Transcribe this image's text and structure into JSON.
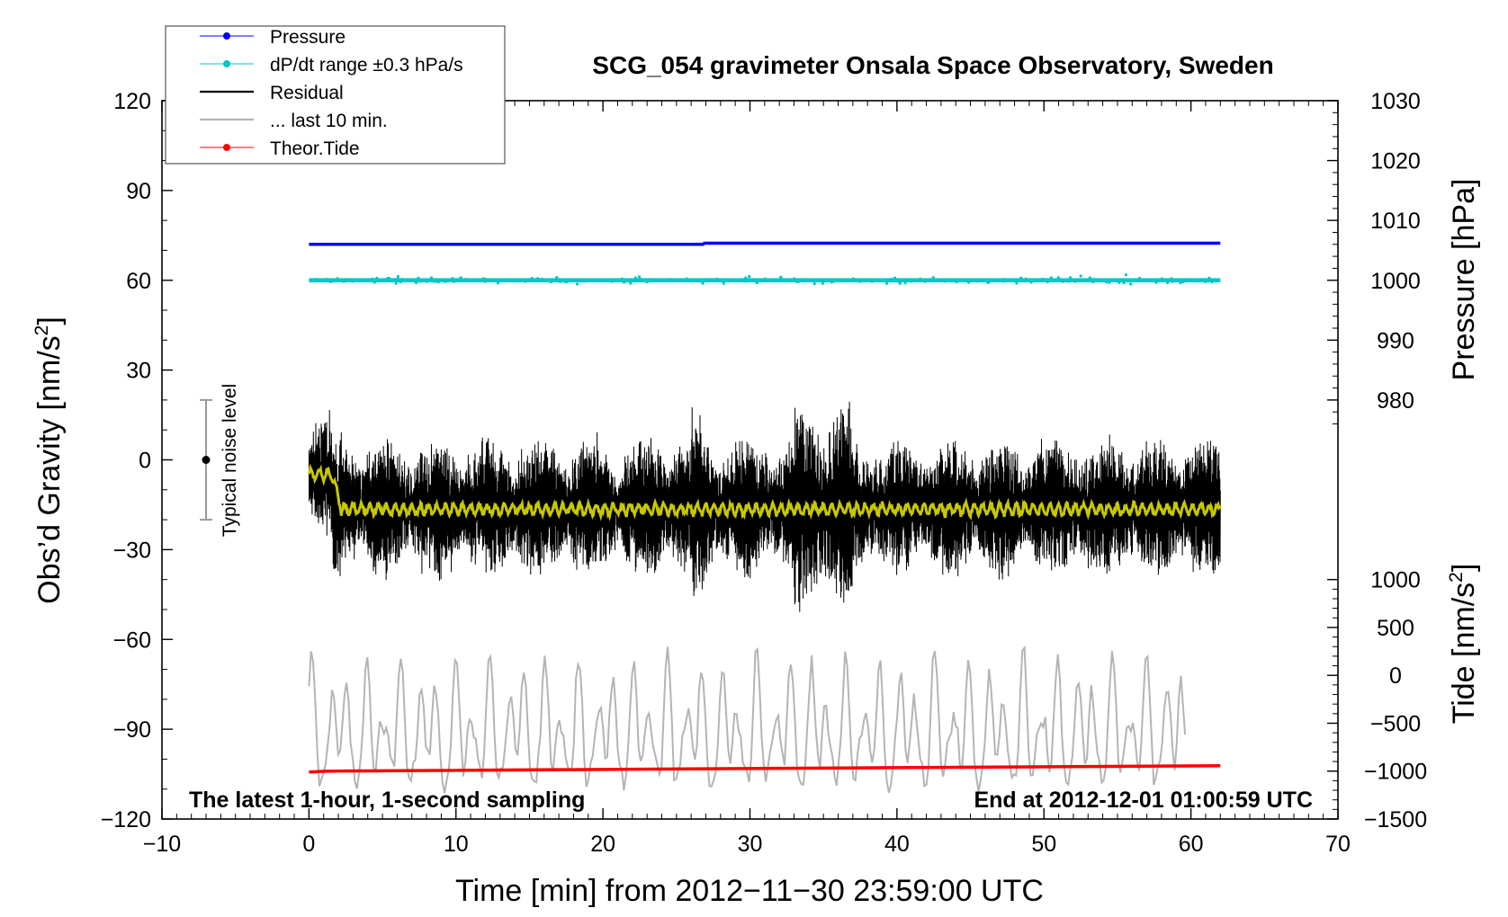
{
  "chart_data": {
    "type": "line",
    "title": "SCG_054 gravimeter Onsala Space Observatory, Sweden",
    "xlabel": "Time [min] from 2012−11−30 23:59:00 UTC",
    "ylabel_left": "Obs’d Gravity [nm/s²]",
    "ylabel_left_parts": {
      "base": "Obs’d Gravity [nm/s",
      "sup": "2",
      "end": "]"
    },
    "ylabel_right_top": "Pressure [hPa]",
    "ylabel_right_bottom": "Tide [nm/s²]",
    "ylabel_right_bottom_parts": {
      "base": "Tide [nm/s",
      "sup": "2",
      "end": "]"
    },
    "xlim": [
      -10,
      70
    ],
    "ylim_left": [
      -120,
      120
    ],
    "x_ticks": [
      -10,
      0,
      10,
      20,
      30,
      40,
      50,
      60,
      70
    ],
    "x_tick_labels": [
      "−10",
      "0",
      "10",
      "20",
      "30",
      "40",
      "50",
      "60",
      "70"
    ],
    "y_left_ticks": [
      -120,
      -90,
      -60,
      -30,
      0,
      30,
      60,
      90,
      120
    ],
    "y_left_tick_labels": [
      "−120",
      "−90",
      "−60",
      "−30",
      "0",
      "30",
      "60",
      "90",
      "120"
    ],
    "pressure_axis": {
      "ticks": [
        980,
        990,
        1000,
        1010,
        1020,
        1030
      ],
      "tick_labels": [
        "980",
        "990",
        "1000",
        "1010",
        "1020",
        "1030"
      ],
      "map_ref": {
        "hpa": [
          1000,
          1030
        ],
        "left_units": [
          60,
          120
        ]
      }
    },
    "tide_axis": {
      "ticks": [
        -1500,
        -1000,
        -500,
        0,
        500,
        1000
      ],
      "tick_labels": [
        "−1500",
        "−1000",
        "−500",
        "0",
        "500",
        "1000"
      ],
      "map_ref": {
        "tide": [
          -1500,
          1000
        ],
        "left_units": [
          -120,
          -40
        ]
      }
    },
    "legend": {
      "placement": "top-left",
      "entries": [
        {
          "label": "Pressure",
          "color": "#0000ff",
          "marker": "dot"
        },
        {
          "label": "dP/dt range ±0.3 hPa/s",
          "color": "#00c8c8",
          "marker": "dot"
        },
        {
          "label": "Residual",
          "color": "#000000",
          "marker": "line"
        },
        {
          "label": "... last 10 min.",
          "color": "#b4b4b4",
          "marker": "line"
        },
        {
          "label": "Theor.Tide",
          "color": "#ff0000",
          "marker": "dot"
        }
      ]
    },
    "series": [
      {
        "name": "Pressure",
        "axis": "pressure",
        "color": "#0000ff",
        "x": [
          0,
          26.8,
          26.9,
          62
        ],
        "values": [
          1006.0,
          1006.0,
          1006.2,
          1006.2
        ]
      },
      {
        "name": "dP/dt range ±0.3 hPa/s",
        "axis": "left",
        "color": "#00c8c8",
        "x_range": [
          0,
          62
        ],
        "center": 60,
        "amplitude": 1.5
      },
      {
        "name": "Residual",
        "axis": "left",
        "color": "#000000",
        "x_range": [
          0,
          62
        ],
        "baseline": -16,
        "start_level": -5,
        "step_at": 1.6,
        "amplitude_typical": 22,
        "min": -60,
        "max": 29
      },
      {
        "name": "Residual smoothed",
        "axis": "left",
        "color": "#c8c800",
        "x_range": [
          0,
          62
        ],
        "start_level": -5,
        "baseline": -16.5,
        "step_at": 1.6
      },
      {
        "name": "... last 10 min.",
        "axis": "left",
        "color": "#b4b4b4",
        "x_range": [
          0,
          59.6
        ],
        "baseline": -91,
        "amplitude": 20
      },
      {
        "name": "Theor.Tide",
        "axis": "left",
        "color": "#ff0000",
        "x": [
          0,
          1.3,
          62
        ],
        "values": [
          -104.3,
          -104.0,
          -102.2
        ]
      }
    ],
    "noise_indicator": {
      "label": "Typical noise level",
      "x": -7,
      "center": 0,
      "low": -20,
      "high": 20
    },
    "annotations": [
      {
        "text": "The latest 1-hour, 1-second sampling",
        "position": "bottom-left"
      },
      {
        "text": "End at 2012-12-01 01:00:59 UTC",
        "position": "bottom-right"
      }
    ]
  }
}
